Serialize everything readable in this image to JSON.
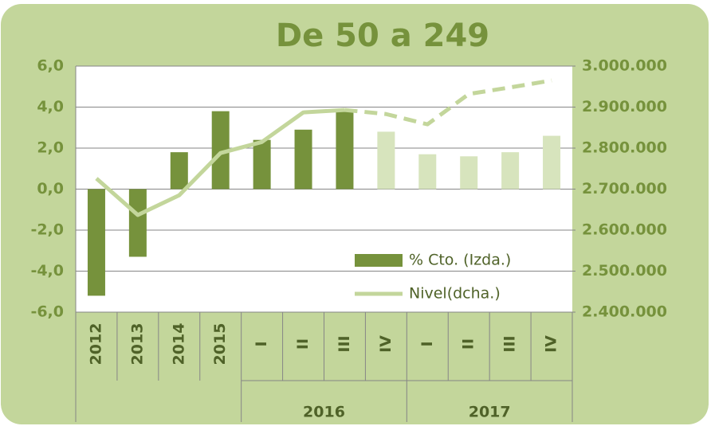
{
  "chart_data": {
    "type": "bar_line",
    "title": "De 50 a 249",
    "categories": [
      "2012",
      "2013",
      "2014",
      "2015",
      "I",
      "II",
      "III",
      "IV",
      "I",
      "II",
      "III",
      "IV"
    ],
    "groups": [
      {
        "label": "2016",
        "start": 4,
        "end": 7
      },
      {
        "label": "2017",
        "start": 8,
        "end": 11
      }
    ],
    "series": [
      {
        "name": "% Cto. (Izda.)",
        "type": "bar",
        "color": "#76923c",
        "colors": [
          "#76923c",
          "#76923c",
          "#76923c",
          "#76923c",
          "#76923c",
          "#76923c",
          "#76923c",
          "#d7e4bd",
          "#d7e4bd",
          "#d7e4bd",
          "#d7e4bd",
          "#d7e4bd"
        ],
        "values": [
          -5.2,
          -3.3,
          1.8,
          3.8,
          2.4,
          2.9,
          3.8,
          2.8,
          1.7,
          1.6,
          1.8,
          2.6
        ]
      },
      {
        "name": "Nivel(dcha.)",
        "type": "line",
        "axis": "y2",
        "color": "#c3d69b",
        "dash_from_index": 6,
        "values": [
          2726000,
          2637000,
          2685000,
          2788000,
          2815000,
          2887000,
          2893000,
          2883000,
          2858000,
          2932000,
          2948000,
          2965000
        ]
      }
    ],
    "ylim": [
      -6,
      6
    ],
    "yticks": [
      {
        "value": -6,
        "label": "-6,0"
      },
      {
        "value": -4,
        "label": "-4,0"
      },
      {
        "value": -2,
        "label": "-2,0"
      },
      {
        "value": 0,
        "label": "0,0"
      },
      {
        "value": 2,
        "label": "2,0"
      },
      {
        "value": 4,
        "label": "4,0"
      },
      {
        "value": 6,
        "label": "6,0"
      }
    ],
    "y2lim": [
      2400000,
      3000000
    ],
    "y2ticks": [
      {
        "value": 2400000,
        "label": "2.400.000"
      },
      {
        "value": 2500000,
        "label": "2.500.000"
      },
      {
        "value": 2600000,
        "label": "2.600.000"
      },
      {
        "value": 2700000,
        "label": "2.700.000"
      },
      {
        "value": 2800000,
        "label": "2.800.000"
      },
      {
        "value": 2900000,
        "label": "2.900.000"
      },
      {
        "value": 3000000,
        "label": "3.000.000"
      }
    ],
    "grid": true,
    "legend": "bottom-right"
  }
}
